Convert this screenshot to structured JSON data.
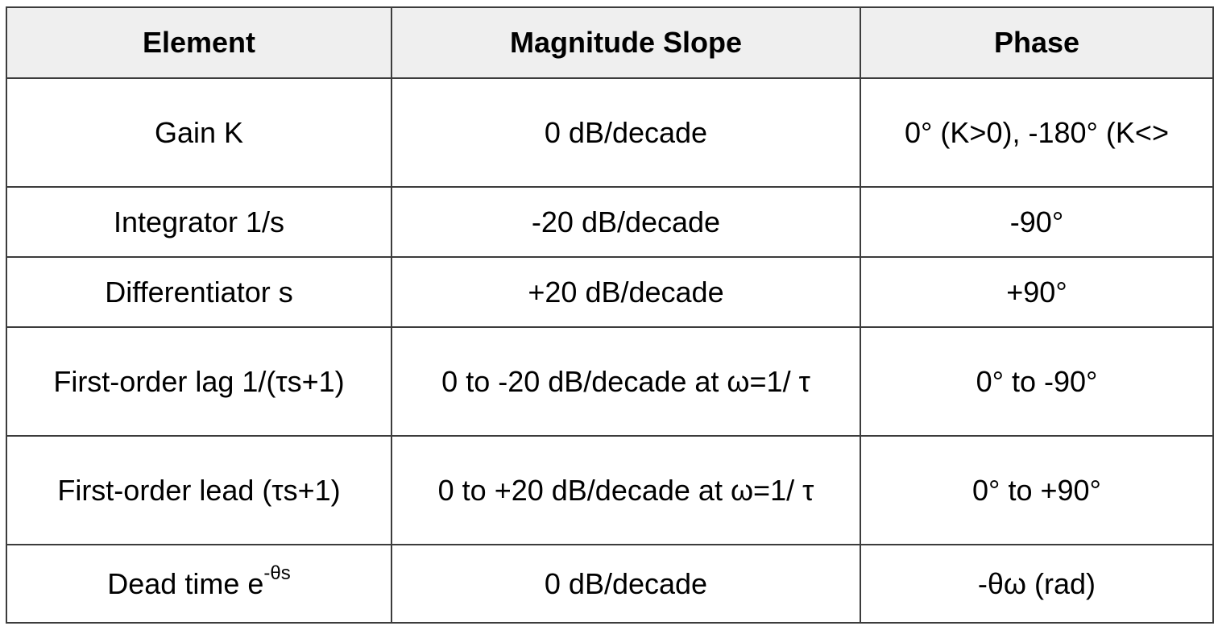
{
  "table": {
    "headers": [
      "Element",
      "Magnitude Slope",
      "Phase"
    ],
    "rows": [
      {
        "element": "Gain K",
        "magnitude": "0 dB/decade",
        "phase": "0° (K>0), -180° (K<>"
      },
      {
        "element": "Integrator 1/s",
        "magnitude": "-20 dB/decade",
        "phase": "-90°"
      },
      {
        "element": "Differentiator s",
        "magnitude": "+20 dB/decade",
        "phase": "+90°"
      },
      {
        "element": "First-order lag 1/(τs+1)",
        "magnitude": "0 to -20 dB/decade at ω=1/ τ",
        "phase": "0° to -90°"
      },
      {
        "element": "First-order lead (τs+1)",
        "magnitude": "0 to +20 dB/decade at ω=1/ τ",
        "phase": "0° to +90°"
      },
      {
        "element_base": "Dead time e",
        "element_exponent": "-θs",
        "magnitude": "0 dB/decade",
        "phase": "-θω (rad)"
      }
    ]
  }
}
